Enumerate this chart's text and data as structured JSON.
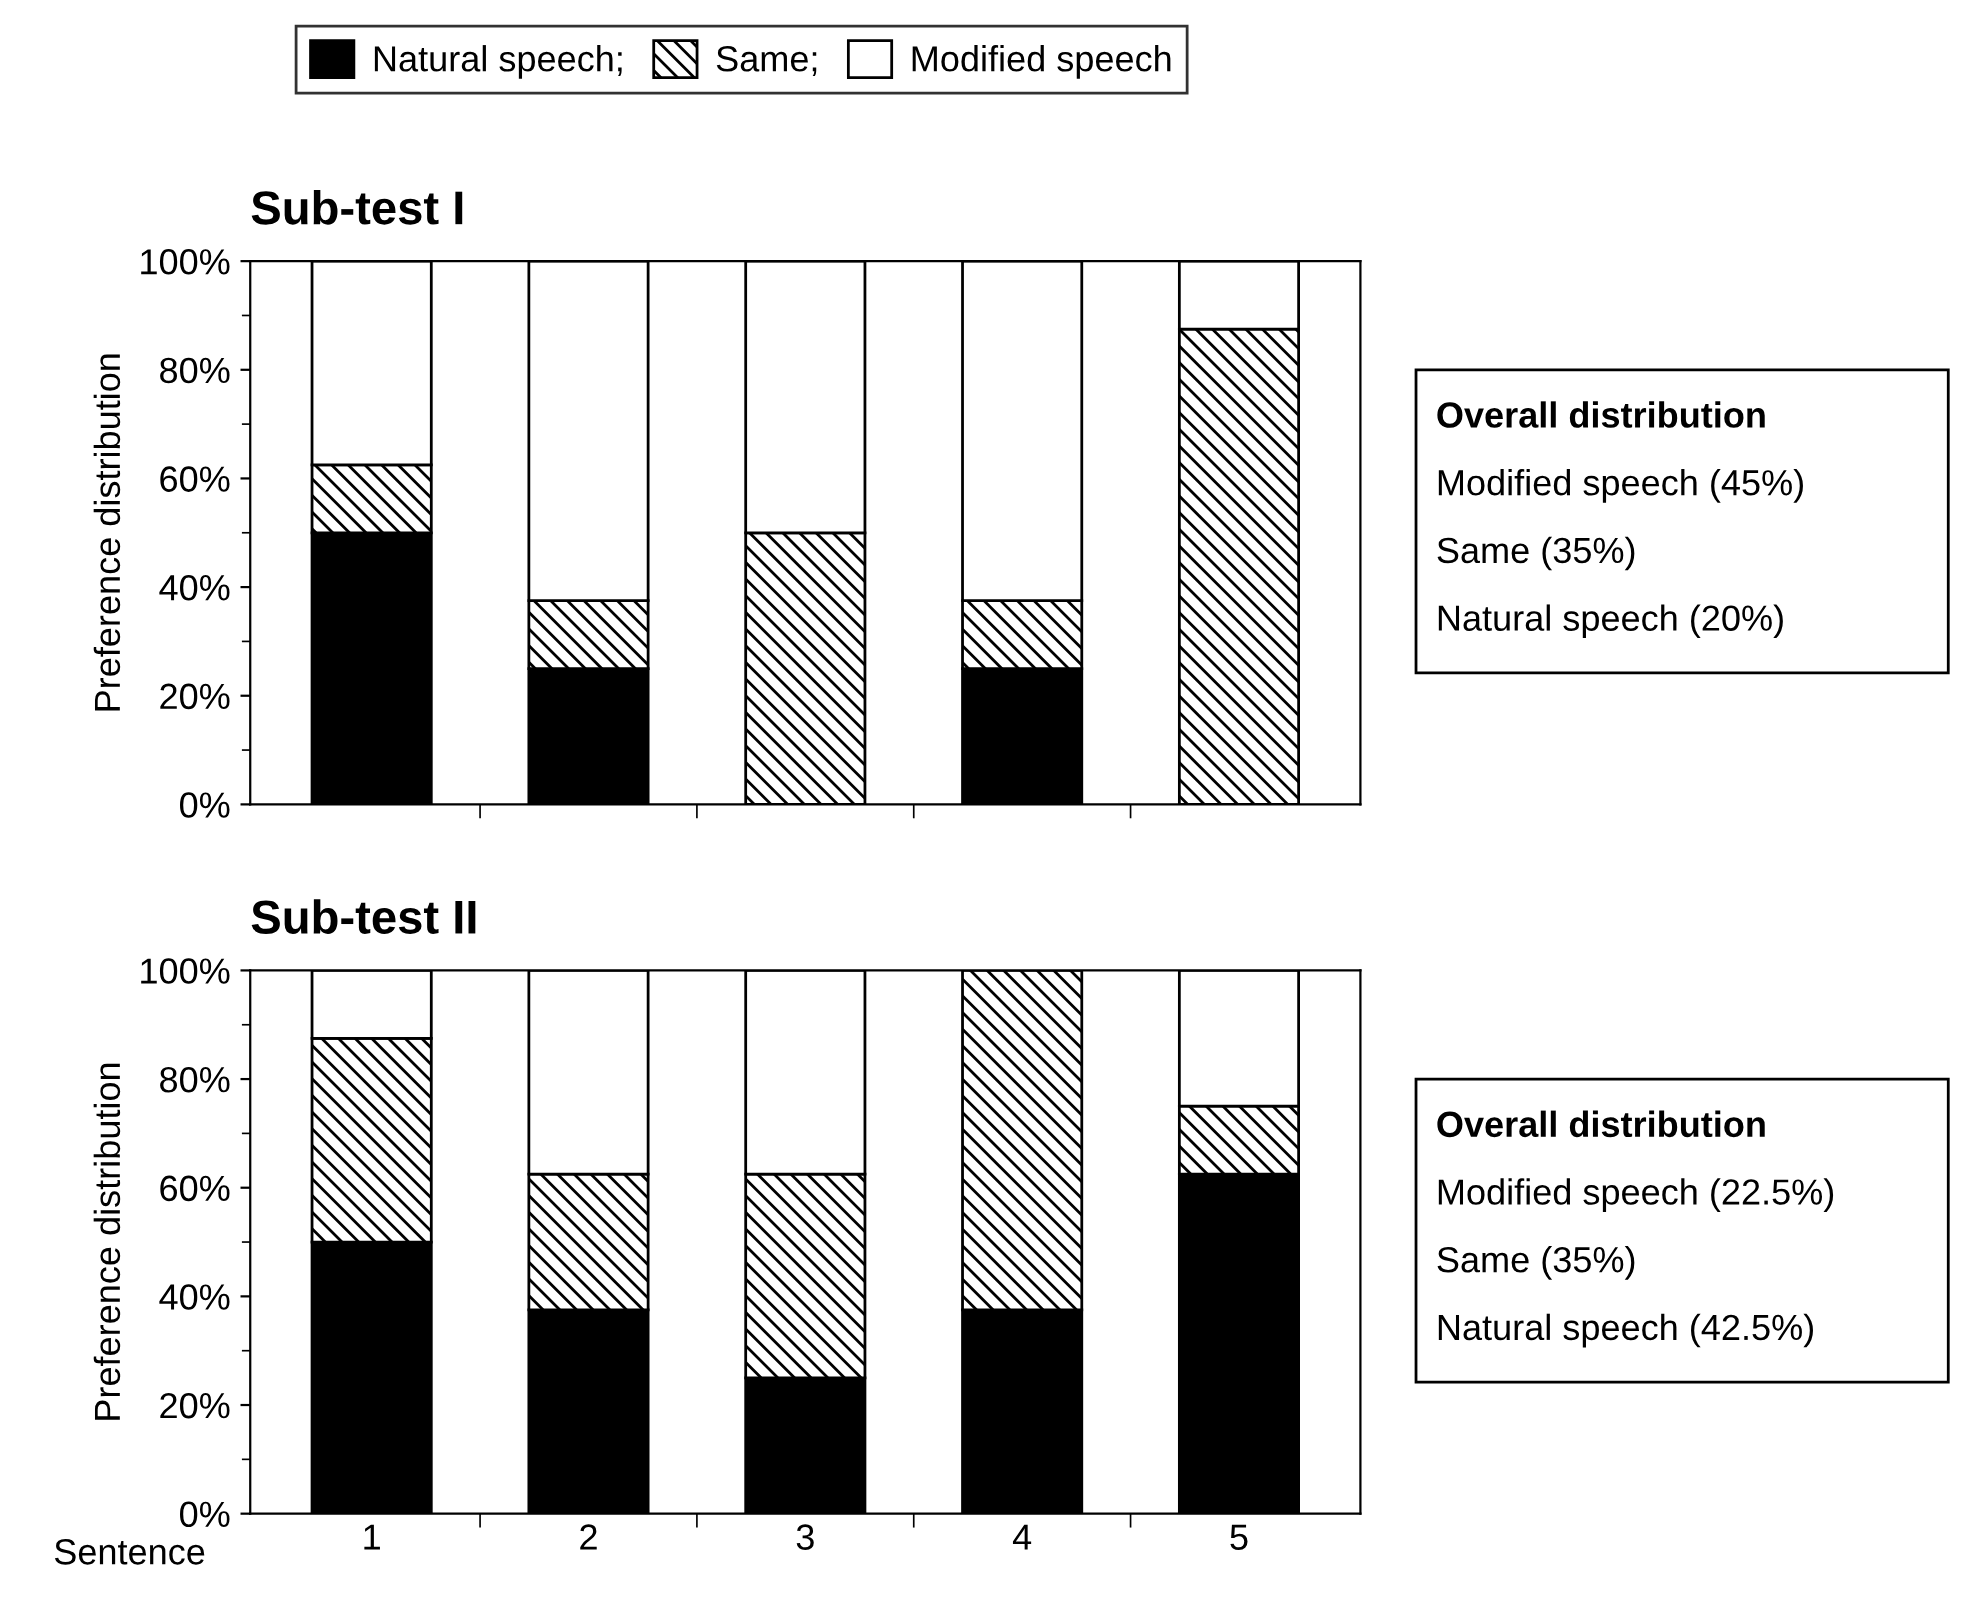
{
  "chart_data": [
    {
      "type": "bar",
      "stacked": true,
      "title": "Sub-test I",
      "ylabel": "Preference distribution",
      "categories": [
        "1",
        "2",
        "3",
        "4",
        "5"
      ],
      "tick_labels": "y",
      "legend": "top",
      "series": [
        {
          "name": "Natural speech;",
          "color": "#000000",
          "values": [
            50,
            25,
            0,
            25,
            0
          ]
        },
        {
          "name": "Same;",
          "color": "#000000",
          "values": [
            12.5,
            12.5,
            50,
            12.5,
            87.5
          ]
        },
        {
          "name": "Modified speech",
          "color": "#ffffff",
          "values": [
            37.5,
            62.5,
            50,
            62.5,
            12.5
          ]
        }
      ],
      "ylim": [
        0,
        100
      ],
      "yticks": [
        {
          "value": 0,
          "label": "0%"
        },
        {
          "value": 20,
          "label": "20%"
        },
        {
          "value": 40,
          "label": "40%"
        },
        {
          "value": 60,
          "label": "60%"
        },
        {
          "value": 80,
          "label": "80%"
        },
        {
          "value": 100,
          "label": "100%"
        }
      ],
      "annotations": [
        "Overall distribution",
        "Modified speech (45%)",
        "Same (35%)",
        "Natural speech (20%)"
      ]
    },
    {
      "type": "bar",
      "stacked": true,
      "title": "Sub-test II",
      "ylabel": "Preference distribution",
      "xlabel": "Sentence",
      "categories": [
        "1",
        "2",
        "3",
        "4",
        "5"
      ],
      "series": [
        {
          "color": "#000000",
          "values": [
            50,
            37.5,
            25,
            37.5,
            62.5
          ]
        },
        {
          "color": "#000000",
          "values": [
            37.5,
            25,
            37.5,
            62.5,
            12.5
          ]
        },
        {
          "color": "#ffffff",
          "values": [
            12.5,
            37.5,
            37.5,
            0,
            25
          ]
        }
      ],
      "ylim": [
        0,
        100
      ],
      "yticks": [
        {
          "value": 0,
          "label": "0%"
        },
        {
          "value": 20,
          "label": "20%"
        },
        {
          "value": 40,
          "label": "40%"
        },
        {
          "value": 60,
          "label": "60%"
        },
        {
          "value": 80,
          "label": "80%"
        },
        {
          "value": 100,
          "label": "100%"
        }
      ],
      "annotations": [
        "Overall distribution",
        "Modified speech (22.5%)",
        "Same (35%)",
        "Natural speech (42.5%)"
      ]
    }
  ]
}
